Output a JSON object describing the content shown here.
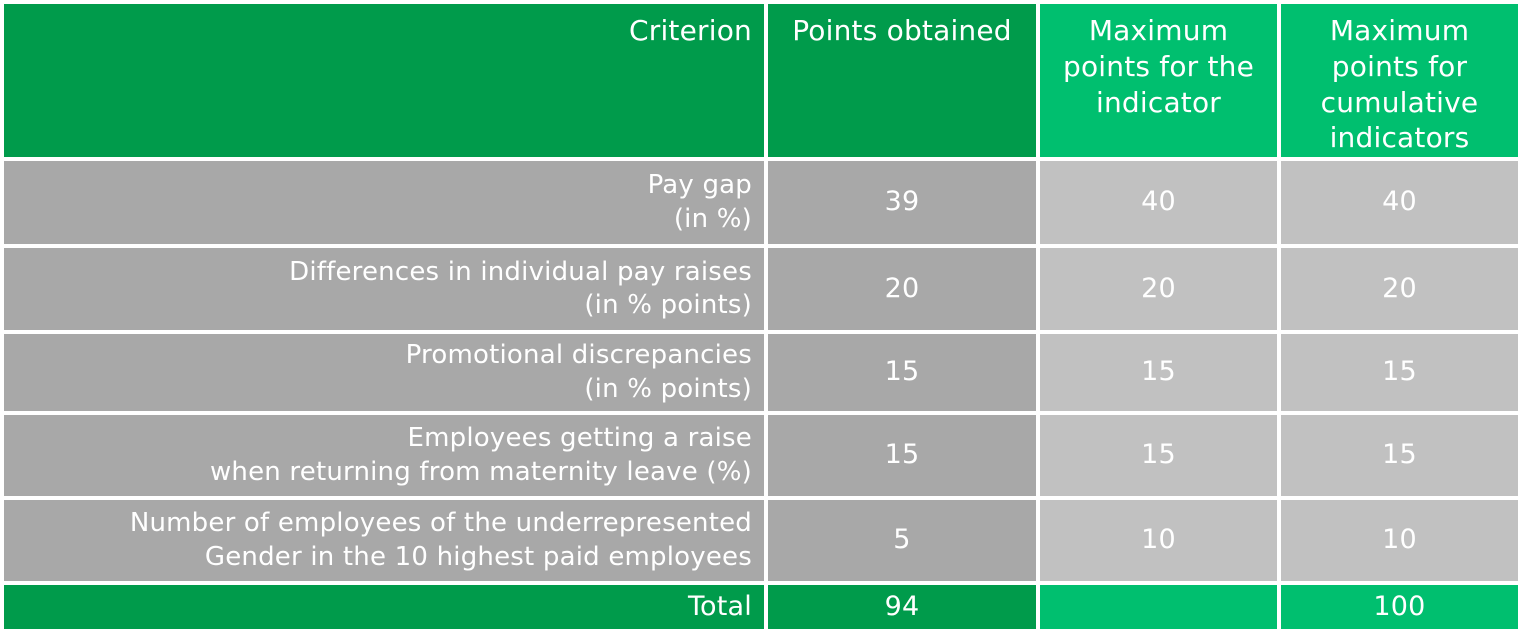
{
  "colors": {
    "dark_green": "#009b4b",
    "light_green": "#00bf6f",
    "dark_gray": "#a8a8a8",
    "light_gray": "#c1c1c1",
    "text": "#ffffff"
  },
  "table": {
    "header": {
      "criterion": "Criterion",
      "points_obtained": "Points obtained",
      "max_indicator": "Maximum\npoints for the\nindicator",
      "max_cumulative": "Maximum\npoints for\ncumulative\nindicators"
    },
    "rows": [
      {
        "criterion": "Pay gap\n(in %)",
        "points_obtained": "39",
        "max_indicator": "40",
        "max_cumulative": "40"
      },
      {
        "criterion": "Differences in individual pay raises\n(in % points)",
        "points_obtained": "20",
        "max_indicator": "20",
        "max_cumulative": "20"
      },
      {
        "criterion": "Promotional discrepancies\n(in % points)",
        "points_obtained": "15",
        "max_indicator": "15",
        "max_cumulative": "15"
      },
      {
        "criterion": "Employees getting a raise\nwhen returning from maternity leave (%)",
        "points_obtained": "15",
        "max_indicator": "15",
        "max_cumulative": "15"
      },
      {
        "criterion": "Number of employees of the underrepresented\nGender in the 10 highest paid employees",
        "points_obtained": "5",
        "max_indicator": "10",
        "max_cumulative": "10"
      }
    ],
    "total": {
      "label": "Total",
      "points_obtained": "94",
      "max_indicator": "",
      "max_cumulative": "100"
    }
  },
  "chart_data": {
    "type": "table",
    "columns": [
      "Criterion",
      "Points obtained",
      "Maximum points for the indicator",
      "Maximum points for cumulative indicators"
    ],
    "rows": [
      [
        "Pay gap (in %)",
        39,
        40,
        40
      ],
      [
        "Differences in individual pay raises (in % points)",
        20,
        20,
        20
      ],
      [
        "Promotional discrepancies (in % points)",
        15,
        15,
        15
      ],
      [
        "Employees getting a raise when returning from maternity leave (%)",
        15,
        15,
        15
      ],
      [
        "Number of employees of the underrepresented Gender in the 10 highest paid employees",
        5,
        10,
        10
      ],
      [
        "Total",
        94,
        null,
        100
      ]
    ]
  }
}
